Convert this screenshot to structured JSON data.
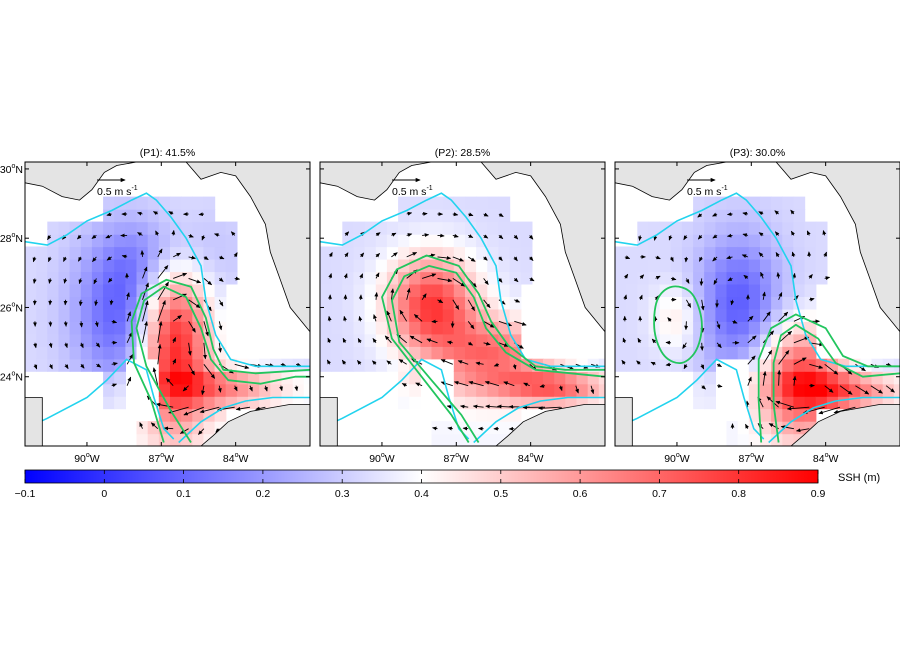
{
  "panels": [
    {
      "title": "(P1): 41.5%",
      "eddies": [
        {
          "lon": -86.5,
          "lat": 25.0,
          "rx": 1.4,
          "ry": 2.4,
          "amp": 0.55
        },
        {
          "lon": -84.5,
          "lat": 23.7,
          "rx": 2.2,
          "ry": 0.6,
          "amp": 0.25
        }
      ],
      "lows": [
        {
          "lon": -88.5,
          "lat": 25.7,
          "rx": 2.0,
          "ry": 2.0,
          "amp": -0.25
        },
        {
          "lon": -87.0,
          "lat": 27.5,
          "rx": 2.5,
          "ry": 1.3,
          "amp": -0.15
        }
      ]
    },
    {
      "title": "(P2): 28.5%",
      "eddies": [
        {
          "lon": -88.0,
          "lat": 26.1,
          "rx": 1.8,
          "ry": 1.4,
          "amp": 0.45
        },
        {
          "lon": -85.5,
          "lat": 24.6,
          "rx": 2.3,
          "ry": 1.1,
          "amp": 0.35
        },
        {
          "lon": -83.0,
          "lat": 23.7,
          "rx": 2.0,
          "ry": 0.5,
          "amp": 0.3
        }
      ]
    },
    {
      "title": "(P3): 30.0%",
      "eddies": [
        {
          "lon": -90.0,
          "lat": 25.7,
          "rx": 1.0,
          "ry": 1.0,
          "amp": 0.12
        },
        {
          "lon": -85.0,
          "lat": 23.9,
          "rx": 1.7,
          "ry": 1.5,
          "amp": 0.45
        },
        {
          "lon": -83.0,
          "lat": 23.6,
          "rx": 2.0,
          "ry": 0.5,
          "amp": 0.25
        }
      ],
      "lows": [
        {
          "lon": -87.5,
          "lat": 26.1,
          "rx": 1.7,
          "ry": 2.0,
          "amp": -0.25
        }
      ]
    }
  ],
  "scale_arrow_label": "0.5 m s",
  "scale_arrow_exponent": "-1",
  "lat_ticks": [
    {
      "value": 30,
      "label": "30"
    },
    {
      "value": 28,
      "label": "28"
    },
    {
      "value": 26,
      "label": "26"
    },
    {
      "value": 24,
      "label": "24"
    }
  ],
  "lat_suffix": "N",
  "lon_ticks": [
    {
      "value": -90,
      "label": "90"
    },
    {
      "value": -87,
      "label": "87"
    },
    {
      "value": -84,
      "label": "84"
    }
  ],
  "lon_suffix": "W",
  "degree_symbol": "o",
  "colorbar": {
    "label": "SSH (m)",
    "min": -0.1,
    "max": 0.9,
    "ticks": [
      "-0.1",
      "0",
      "0.1",
      "0.2",
      "0.3",
      "0.4",
      "0.5",
      "0.6",
      "0.7",
      "0.8",
      "0.9"
    ],
    "colors": [
      "#0000ff",
      "#ffffff",
      "#ff0000"
    ]
  },
  "colors": {
    "land": "#e4e4e4",
    "isobath": "#22d3ee",
    "ssh_contour": "#22c55e",
    "arrow": "#000000"
  }
}
